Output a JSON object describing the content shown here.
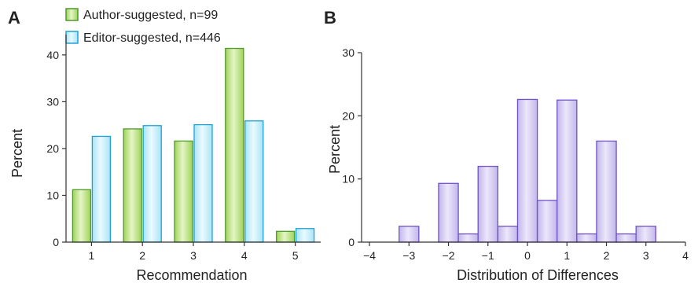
{
  "colors": {
    "author_fill": "#9fd35a",
    "author_stroke": "#4f9a2a",
    "editor_fill": "#a9e4f6",
    "editor_stroke": "#1fa3d4",
    "hist_fill": "#c2b6ea",
    "hist_stroke": "#6f52c8"
  },
  "chart_data": [
    {
      "panel": "A",
      "type": "bar",
      "xlabel": "Recommendation",
      "ylabel": "Percent",
      "ylim": [
        0,
        43
      ],
      "yticks": [
        0,
        10,
        20,
        30,
        40
      ],
      "categories": [
        "1",
        "2",
        "3",
        "4",
        "5"
      ],
      "legend_position": "top-left",
      "series": [
        {
          "name": "Author-suggested, n=99",
          "values": [
            11.2,
            24.2,
            21.6,
            41.4,
            2.3
          ]
        },
        {
          "name": "Editor-suggested, n=446",
          "values": [
            22.6,
            24.9,
            25.1,
            25.9,
            2.9
          ]
        }
      ]
    },
    {
      "panel": "B",
      "type": "bar",
      "xlabel": "Distribution of Differences",
      "ylabel": "Percent",
      "xlim": [
        -4.2,
        4
      ],
      "ylim": [
        0,
        30
      ],
      "xticks": [
        -4,
        -3,
        -2,
        -1,
        0,
        1,
        2,
        3,
        4
      ],
      "xtick_labels": [
        "−4",
        "−3",
        "−2",
        "−1",
        "0",
        "1",
        "2",
        "3",
        "4"
      ],
      "yticks": [
        0,
        10,
        20,
        30
      ],
      "bin_width": 0.5,
      "x": [
        -3,
        -2,
        -1.5,
        -1,
        -0.5,
        0,
        0.5,
        1,
        1.5,
        2,
        2.5,
        3
      ],
      "values": [
        2.5,
        9.3,
        1.3,
        12.0,
        2.5,
        22.6,
        6.6,
        22.5,
        1.3,
        16.0,
        1.3,
        2.5
      ]
    }
  ]
}
